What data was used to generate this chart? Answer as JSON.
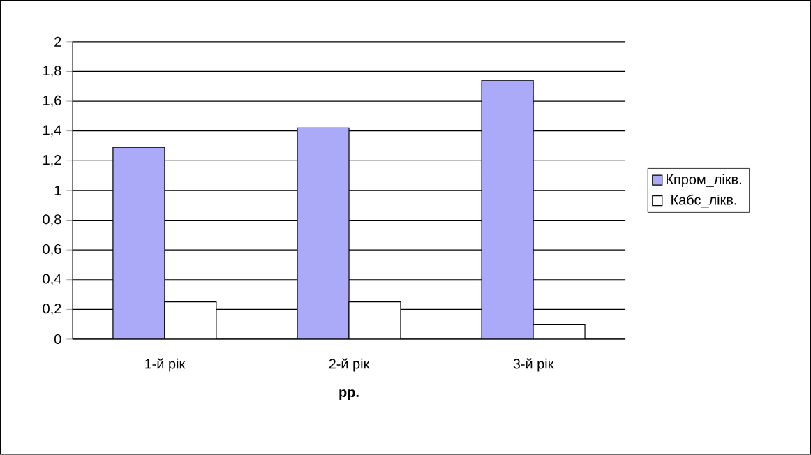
{
  "chart_data": {
    "type": "bar",
    "xlabel": "рр.",
    "categories": [
      "1-й рік",
      "2-й рік",
      "3-й рік"
    ],
    "series": [
      {
        "name": "Кпром_лікв.",
        "color": "#aaaaf8",
        "values": [
          1.29,
          1.42,
          1.74
        ]
      },
      {
        "name": "Кабс_лікв.",
        "color": "#ffffff",
        "values": [
          0.25,
          0.25,
          0.1
        ]
      }
    ],
    "ylim": [
      0,
      2
    ],
    "yticks": [
      0,
      {
        "value": 0.2,
        "label": "0,2"
      },
      {
        "value": 0.4,
        "label": "0,4"
      },
      {
        "value": 0.6,
        "label": "0,6"
      },
      {
        "value": 0.8,
        "label": "0,8"
      },
      1,
      {
        "value": 1.2,
        "label": "1,2"
      },
      {
        "value": 1.4,
        "label": "1,4"
      },
      {
        "value": 1.6,
        "label": "1,6"
      },
      {
        "value": 1.8,
        "label": "1,8"
      },
      2
    ],
    "grid": "y",
    "legend": "right"
  }
}
